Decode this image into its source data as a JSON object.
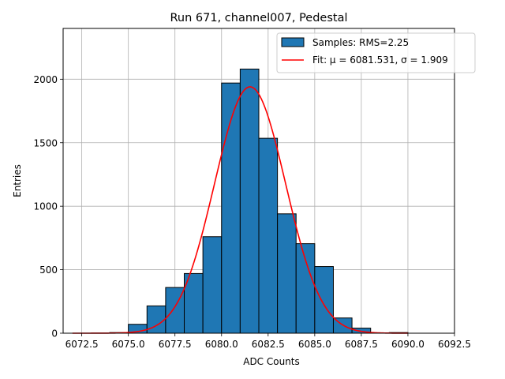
{
  "chart_data": {
    "type": "bar",
    "title": "Run 671, channel007, Pedestal",
    "xlabel": "ADC Counts",
    "ylabel": "Entries",
    "xlim": [
      6071.5,
      6092.5
    ],
    "ylim": [
      0,
      2400
    ],
    "xticks": [
      6072.5,
      6075.0,
      6077.5,
      6080.0,
      6082.5,
      6085.0,
      6087.5,
      6090.0,
      6092.5
    ],
    "xtick_labels": [
      "6072.5",
      "6075.0",
      "6077.5",
      "6080.0",
      "6082.5",
      "6085.0",
      "6087.5",
      "6090.0",
      "6092.5"
    ],
    "yticks": [
      0,
      500,
      1000,
      1500,
      2000
    ],
    "ytick_labels": [
      "0",
      "500",
      "1000",
      "1500",
      "2000"
    ],
    "grid": true,
    "legend_position": "top-right",
    "histogram": {
      "name": "Samples: RMS=2.25",
      "color": "#1f77b4",
      "edge_color": "#000000",
      "bins": [
        {
          "x0": 6072,
          "x1": 6073,
          "count": 0
        },
        {
          "x0": 6073,
          "x1": 6074,
          "count": 0
        },
        {
          "x0": 6074,
          "x1": 6075,
          "count": 5
        },
        {
          "x0": 6075,
          "x1": 6076,
          "count": 70
        },
        {
          "x0": 6076,
          "x1": 6077,
          "count": 215
        },
        {
          "x0": 6077,
          "x1": 6078,
          "count": 360
        },
        {
          "x0": 6078,
          "x1": 6079,
          "count": 470
        },
        {
          "x0": 6079,
          "x1": 6080,
          "count": 760
        },
        {
          "x0": 6080,
          "x1": 6081,
          "count": 1970
        },
        {
          "x0": 6081,
          "x1": 6082,
          "count": 2080
        },
        {
          "x0": 6082,
          "x1": 6083,
          "count": 1535
        },
        {
          "x0": 6083,
          "x1": 6084,
          "count": 940
        },
        {
          "x0": 6084,
          "x1": 6085,
          "count": 705
        },
        {
          "x0": 6085,
          "x1": 6086,
          "count": 525
        },
        {
          "x0": 6086,
          "x1": 6087,
          "count": 120
        },
        {
          "x0": 6087,
          "x1": 6088,
          "count": 40
        },
        {
          "x0": 6088,
          "x1": 6089,
          "count": 3
        },
        {
          "x0": 6089,
          "x1": 6090,
          "count": 5
        },
        {
          "x0": 6090,
          "x1": 6091,
          "count": 0
        },
        {
          "x0": 6091,
          "x1": 6092,
          "count": 0
        }
      ]
    },
    "fit": {
      "name": "Fit: μ = 6081.531, σ = 1.909",
      "color": "#ff0000",
      "mu": 6081.531,
      "sigma": 1.909,
      "amplitude": 1940,
      "x_range": [
        6072,
        6090
      ]
    }
  }
}
